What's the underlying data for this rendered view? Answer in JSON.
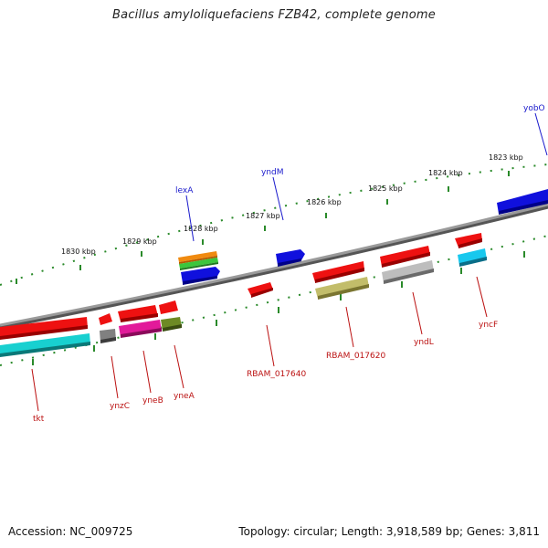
{
  "title": "Bacillus amyloliquefaciens FZB42, complete genome",
  "footer": {
    "accession": "Accession: NC_009725",
    "summary": "Topology: circular; Length: 3,918,589 bp; Genes: 3,811"
  },
  "colors": {
    "forward_label": "#1a1acc",
    "reverse_label": "#bb1111",
    "tick": "#2a8a2a",
    "backbone": "#8c8c8c"
  },
  "kbp_labels": [
    "1830 kbp",
    "1829 kbp",
    "1828 kbp",
    "1827 kbp",
    "1826 kbp",
    "1825 kbp",
    "1824 kbp",
    "1823 kbp"
  ],
  "forward_labels": [
    "lexA",
    "yndM",
    "yobO"
  ],
  "reverse_labels": [
    "tkt",
    "ynzC",
    "yneB",
    "yneA",
    "RBAM_017640",
    "RBAM_017620",
    "yndL",
    "yncF"
  ]
}
